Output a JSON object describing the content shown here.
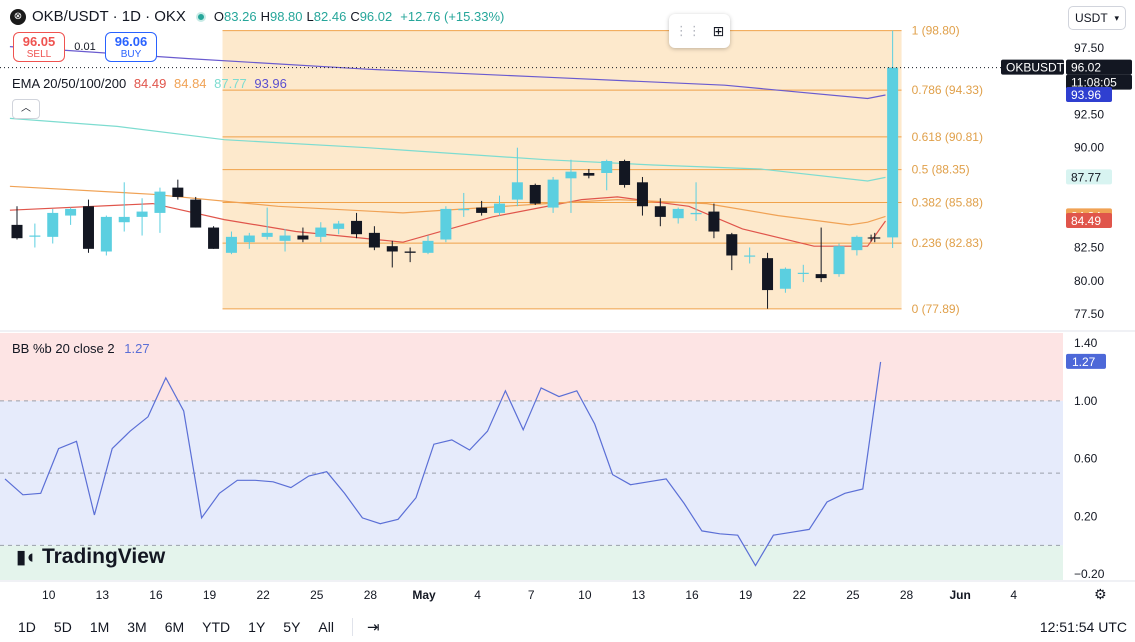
{
  "header": {
    "logo_glyph": "⊗",
    "symbol": "OKB/USDT · 1D · OKX",
    "open_label": "O",
    "open": "83.26",
    "high_label": "H",
    "high": "98.80",
    "low_label": "L",
    "low": "82.46",
    "close_label": "C",
    "close": "96.02",
    "change": "+12.76 (+15.33%)"
  },
  "trade": {
    "sell_price": "96.05",
    "sell_label": "SELL",
    "spread": "0.01",
    "buy_price": "96.06",
    "buy_label": "BUY"
  },
  "ema_legend": {
    "label": "EMA 20/50/100/200",
    "v20": "84.49",
    "v50": "84.84",
    "v100": "87.77",
    "v200": "93.96"
  },
  "bb_legend": {
    "label": "BB %b 20 close 2",
    "value": "1.27"
  },
  "currency": "USDT",
  "brand": "TradingView",
  "timeframes": [
    "1D",
    "5D",
    "1M",
    "3M",
    "6M",
    "YTD",
    "1Y",
    "5Y",
    "All"
  ],
  "clock": "12:51:54 UTC",
  "colors": {
    "up": "#5bcfe0",
    "down": "#131722",
    "ema20": "#e0554b",
    "ema50": "#f0a255",
    "ema100": "#7ddcd0",
    "ema200": "#6a5bcf",
    "fib_fill": "#fde9cc",
    "fib_line": "#f0a24a",
    "bb_line": "#5b6fd6"
  },
  "chart_data": [
    {
      "type": "candlestick",
      "title": "OKB/USDT · 1D · OKX",
      "x_ticks": [
        "10",
        "13",
        "16",
        "19",
        "22",
        "25",
        "28",
        "May",
        "4",
        "7",
        "10",
        "13",
        "16",
        "19",
        "22",
        "25",
        "28",
        "Jun",
        "4"
      ],
      "y_ticks": [
        "97.50",
        "92.50",
        "90.00",
        "82.50",
        "80.00",
        "77.50"
      ],
      "ylim": [
        76.3,
        100.8
      ],
      "candles": [
        {
          "o": 84.2,
          "h": 85.6,
          "l": 83.1,
          "c": 83.2
        },
        {
          "o": 83.4,
          "h": 84.3,
          "l": 82.5,
          "c": 83.4
        },
        {
          "o": 83.3,
          "h": 85.4,
          "l": 82.8,
          "c": 85.1
        },
        {
          "o": 84.9,
          "h": 85.5,
          "l": 84.2,
          "c": 85.4
        },
        {
          "o": 85.6,
          "h": 86.1,
          "l": 82.1,
          "c": 82.4
        },
        {
          "o": 82.2,
          "h": 84.9,
          "l": 81.9,
          "c": 84.8
        },
        {
          "o": 84.4,
          "h": 87.4,
          "l": 83.7,
          "c": 84.8
        },
        {
          "o": 84.8,
          "h": 86.2,
          "l": 83.4,
          "c": 85.2
        },
        {
          "o": 85.1,
          "h": 87.0,
          "l": 83.6,
          "c": 86.7
        },
        {
          "o": 87.0,
          "h": 87.6,
          "l": 86.1,
          "c": 86.3
        },
        {
          "o": 86.1,
          "h": 86.3,
          "l": 84.0,
          "c": 84.0
        },
        {
          "o": 84.0,
          "h": 84.1,
          "l": 82.4,
          "c": 82.4
        },
        {
          "o": 82.1,
          "h": 83.7,
          "l": 82.0,
          "c": 83.3
        },
        {
          "o": 82.9,
          "h": 83.6,
          "l": 82.4,
          "c": 83.4
        },
        {
          "o": 83.3,
          "h": 85.5,
          "l": 83.1,
          "c": 83.6
        },
        {
          "o": 83.0,
          "h": 83.9,
          "l": 82.2,
          "c": 83.4
        },
        {
          "o": 83.4,
          "h": 84.0,
          "l": 82.9,
          "c": 83.1
        },
        {
          "o": 83.3,
          "h": 84.4,
          "l": 82.9,
          "c": 84.0
        },
        {
          "o": 83.9,
          "h": 84.5,
          "l": 83.5,
          "c": 84.3
        },
        {
          "o": 84.5,
          "h": 85.1,
          "l": 83.2,
          "c": 83.5
        },
        {
          "o": 83.6,
          "h": 84.1,
          "l": 82.3,
          "c": 82.5
        },
        {
          "o": 82.6,
          "h": 83.0,
          "l": 81.0,
          "c": 82.2
        },
        {
          "o": 82.2,
          "h": 82.5,
          "l": 81.4,
          "c": 82.1
        },
        {
          "o": 82.1,
          "h": 83.4,
          "l": 82.0,
          "c": 83.0
        },
        {
          "o": 83.1,
          "h": 85.6,
          "l": 82.9,
          "c": 85.4
        },
        {
          "o": 85.3,
          "h": 86.6,
          "l": 84.8,
          "c": 85.4
        },
        {
          "o": 85.5,
          "h": 86.0,
          "l": 84.9,
          "c": 85.1
        },
        {
          "o": 85.1,
          "h": 86.4,
          "l": 84.9,
          "c": 85.8
        },
        {
          "o": 86.1,
          "h": 90.0,
          "l": 85.6,
          "c": 87.4
        },
        {
          "o": 87.2,
          "h": 87.3,
          "l": 85.7,
          "c": 85.8
        },
        {
          "o": 85.5,
          "h": 87.8,
          "l": 85.1,
          "c": 87.6
        },
        {
          "o": 87.7,
          "h": 89.1,
          "l": 85.1,
          "c": 88.2
        },
        {
          "o": 88.1,
          "h": 88.4,
          "l": 87.7,
          "c": 87.9
        },
        {
          "o": 88.1,
          "h": 89.1,
          "l": 86.8,
          "c": 89.0
        },
        {
          "o": 89.0,
          "h": 89.1,
          "l": 87.0,
          "c": 87.2
        },
        {
          "o": 87.4,
          "h": 87.8,
          "l": 84.9,
          "c": 85.6
        },
        {
          "o": 85.6,
          "h": 86.2,
          "l": 84.1,
          "c": 84.8
        },
        {
          "o": 84.7,
          "h": 85.5,
          "l": 84.3,
          "c": 85.4
        },
        {
          "o": 85.0,
          "h": 87.4,
          "l": 84.5,
          "c": 85.1
        },
        {
          "o": 85.2,
          "h": 85.8,
          "l": 83.2,
          "c": 83.7
        },
        {
          "o": 83.5,
          "h": 83.6,
          "l": 80.8,
          "c": 81.9
        },
        {
          "o": 81.9,
          "h": 82.5,
          "l": 81.3,
          "c": 81.9
        },
        {
          "o": 81.7,
          "h": 82.1,
          "l": 77.9,
          "c": 79.3
        },
        {
          "o": 79.4,
          "h": 81.0,
          "l": 79.1,
          "c": 80.9
        },
        {
          "o": 80.6,
          "h": 81.2,
          "l": 79.9,
          "c": 80.6
        },
        {
          "o": 80.5,
          "h": 84.0,
          "l": 79.9,
          "c": 80.2
        },
        {
          "o": 80.5,
          "h": 82.8,
          "l": 80.3,
          "c": 82.6
        },
        {
          "o": 82.3,
          "h": 83.4,
          "l": 81.9,
          "c": 83.3
        },
        {
          "o": 83.26,
          "h": 83.6,
          "l": 82.9,
          "c": 83.2
        },
        {
          "o": 83.26,
          "h": 98.8,
          "l": 82.46,
          "c": 96.02
        }
      ],
      "ema": {
        "ema20": [
          {
            "x": 0,
            "y": 85.3
          },
          {
            "x": 8,
            "y": 85.8
          },
          {
            "x": 12,
            "y": 84.6
          },
          {
            "x": 16,
            "y": 83.7
          },
          {
            "x": 22,
            "y": 82.9
          },
          {
            "x": 27,
            "y": 84.8
          },
          {
            "x": 32,
            "y": 86.1
          },
          {
            "x": 34,
            "y": 86.3
          },
          {
            "x": 38,
            "y": 85.6
          },
          {
            "x": 41,
            "y": 83.9
          },
          {
            "x": 45,
            "y": 82.6
          },
          {
            "x": 48,
            "y": 82.6
          },
          {
            "x": 49,
            "y": 84.49
          }
        ],
        "ema50": [
          {
            "x": 0,
            "y": 87.1
          },
          {
            "x": 8,
            "y": 86.5
          },
          {
            "x": 15,
            "y": 85.6
          },
          {
            "x": 22,
            "y": 85.1
          },
          {
            "x": 30,
            "y": 85.8
          },
          {
            "x": 34,
            "y": 86.1
          },
          {
            "x": 39,
            "y": 85.8
          },
          {
            "x": 43,
            "y": 84.9
          },
          {
            "x": 47,
            "y": 84.2
          },
          {
            "x": 48,
            "y": 84.4
          },
          {
            "x": 49,
            "y": 84.84
          }
        ],
        "ema100": [
          {
            "x": 0,
            "y": 92.2
          },
          {
            "x": 6,
            "y": 91.6
          },
          {
            "x": 12,
            "y": 90.6
          },
          {
            "x": 20,
            "y": 90.0
          },
          {
            "x": 30,
            "y": 89.1
          },
          {
            "x": 36,
            "y": 88.7
          },
          {
            "x": 42,
            "y": 88.4
          },
          {
            "x": 48,
            "y": 87.5
          },
          {
            "x": 49,
            "y": 87.77
          }
        ],
        "ema200": [
          {
            "x": 0,
            "y": 97.6
          },
          {
            "x": 10,
            "y": 96.7
          },
          {
            "x": 20,
            "y": 95.9
          },
          {
            "x": 30,
            "y": 95.3
          },
          {
            "x": 40,
            "y": 94.7
          },
          {
            "x": 48,
            "y": 93.7
          },
          {
            "x": 49,
            "y": 93.96
          }
        ]
      },
      "fibonacci": [
        {
          "label": "1 (98.80)",
          "value": 98.8
        },
        {
          "label": "0.786 (94.33)",
          "value": 94.33
        },
        {
          "label": "0.618 (90.81)",
          "value": 90.81
        },
        {
          "label": "0.5 (88.35)",
          "value": 88.35
        },
        {
          "label": "0.382 (85.88)",
          "value": 85.88
        },
        {
          "label": "0.236 (82.83)",
          "value": 82.83
        },
        {
          "label": "0 (77.89)",
          "value": 77.89
        }
      ],
      "fib_range": {
        "start_index": 11.5,
        "end_index": 49.5
      },
      "price_labels": [
        {
          "text": "OKBUSDT",
          "value": 96.02,
          "bg": "#131722",
          "fg": "#ffffff",
          "kind": "symbol"
        },
        {
          "text": "96.02",
          "value": 96.02,
          "bg": "#131722",
          "fg": "#ffffff",
          "kind": "price"
        },
        {
          "text": "11:08:05",
          "value": 96.02,
          "bg": "#131722",
          "fg": "#ffffff",
          "kind": "countdown"
        },
        {
          "text": "93.96",
          "value": 93.96,
          "bg": "#2f3fd0",
          "fg": "#ffffff",
          "kind": "price"
        },
        {
          "text": "87.77",
          "value": 87.77,
          "bg": "#d8f4f1",
          "fg": "#131722",
          "kind": "price"
        },
        {
          "text": "84.84",
          "value": 84.84,
          "bg": "#f0a255",
          "fg": "#ffffff",
          "kind": "price"
        },
        {
          "text": "84.49",
          "value": 84.49,
          "bg": "#e0554b",
          "fg": "#ffffff",
          "kind": "price"
        }
      ]
    },
    {
      "type": "line",
      "title": "BB %b 20 close 2",
      "y_ticks": [
        "1.40",
        "1.00",
        "0.60",
        "0.20",
        "−0.20"
      ],
      "ylim": [
        -0.24,
        1.47
      ],
      "bands": [
        {
          "from": 1.0,
          "to": 1.47,
          "color": "#fde4e4"
        },
        {
          "from": 0.0,
          "to": 1.0,
          "color": "#e6ebfb"
        },
        {
          "from": -0.24,
          "to": 0.0,
          "color": "#e4f4ec"
        }
      ],
      "dashed_levels": [
        1.0,
        0.5,
        0.0
      ],
      "values": [
        0.46,
        0.35,
        0.36,
        0.67,
        0.72,
        0.21,
        0.67,
        0.79,
        0.89,
        1.16,
        0.93,
        0.19,
        0.36,
        0.45,
        0.45,
        0.44,
        0.4,
        0.48,
        0.51,
        0.36,
        0.19,
        0.15,
        0.18,
        0.33,
        0.7,
        0.73,
        0.66,
        0.79,
        1.07,
        0.8,
        1.09,
        1.03,
        1.07,
        0.84,
        0.49,
        0.42,
        0.44,
        0.46,
        0.29,
        0.1,
        0.08,
        0.07,
        -0.14,
        0.07,
        0.09,
        0.11,
        0.3,
        0.36,
        0.39,
        1.27
      ],
      "last_value": "1.27"
    }
  ]
}
